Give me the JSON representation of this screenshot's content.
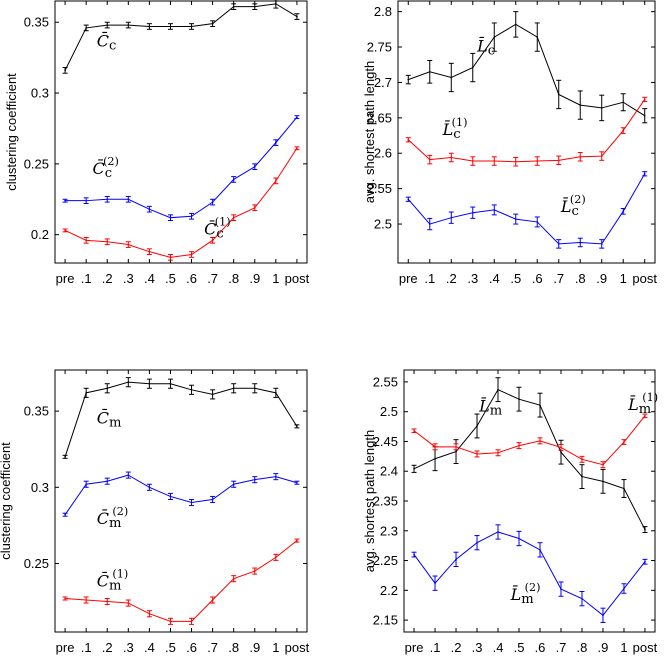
{
  "chart_data": [
    {
      "type": "line",
      "panel": "top-left",
      "ylabel": "clustering coefficient",
      "ylim": [
        0.18,
        0.365
      ],
      "yticks": [
        0.2,
        0.25,
        0.3,
        0.35
      ],
      "ytick_labels": [
        "0.2",
        "0.25",
        "0.3",
        "0.35"
      ],
      "categories": [
        "pre",
        ".1",
        ".2",
        ".3",
        ".4",
        ".5",
        ".6",
        ".7",
        ".8",
        ".9",
        "1",
        "post"
      ],
      "grid": false,
      "series": [
        {
          "color": "#000000",
          "values": [
            0.316,
            0.346,
            0.348,
            0.348,
            0.347,
            0.347,
            0.347,
            0.349,
            0.361,
            0.361,
            0.363,
            0.354
          ],
          "errors": [
            0.002,
            0.002,
            0.002,
            0.002,
            0.002,
            0.002,
            0.002,
            0.002,
            0.002,
            0.002,
            0.003,
            0.002
          ]
        },
        {
          "color": "#0000ff",
          "values": [
            0.224,
            0.224,
            0.225,
            0.225,
            0.218,
            0.212,
            0.213,
            0.223,
            0.239,
            0.248,
            0.265,
            0.283
          ],
          "errors": [
            0.001,
            0.002,
            0.002,
            0.002,
            0.002,
            0.002,
            0.002,
            0.002,
            0.002,
            0.002,
            0.002,
            0.001
          ]
        },
        {
          "color": "#ff0000",
          "values": [
            0.203,
            0.196,
            0.195,
            0.193,
            0.188,
            0.184,
            0.186,
            0.196,
            0.212,
            0.219,
            0.238,
            0.261
          ],
          "errors": [
            0.001,
            0.002,
            0.002,
            0.002,
            0.002,
            0.002,
            0.002,
            0.002,
            0.002,
            0.002,
            0.002,
            0.001
          ]
        }
      ],
      "annotations": [
        {
          "base": "C̄",
          "sub": "c",
          "sup": "",
          "anchor": [
            1.5,
            0.333
          ],
          "size": 16
        },
        {
          "base": "C̄",
          "sub": "c",
          "sup": "(2)",
          "anchor": [
            1.3,
            0.243
          ],
          "size": 16
        },
        {
          "base": "C̄",
          "sub": "c",
          "sup": "(1)",
          "anchor": [
            6.6,
            0.2
          ],
          "size": 16
        }
      ]
    },
    {
      "type": "line",
      "panel": "top-right",
      "ylabel": "avg. shortest path length",
      "ylim": [
        2.445,
        2.815
      ],
      "yticks": [
        2.5,
        2.55,
        2.6,
        2.65,
        2.7,
        2.75,
        2.8
      ],
      "ytick_labels": [
        "2.5",
        "2.55",
        "2.6",
        "2.65",
        "2.7",
        "2.75",
        "2.8"
      ],
      "categories": [
        "pre",
        ".1",
        ".2",
        ".3",
        ".4",
        ".5",
        ".6",
        ".7",
        ".8",
        ".9",
        "1",
        "post"
      ],
      "grid": false,
      "series": [
        {
          "color": "#000000",
          "values": [
            2.704,
            2.715,
            2.707,
            2.721,
            2.764,
            2.782,
            2.764,
            2.683,
            2.668,
            2.664,
            2.672,
            2.653
          ],
          "errors": [
            0.006,
            0.016,
            0.02,
            0.02,
            0.02,
            0.018,
            0.02,
            0.02,
            0.02,
            0.018,
            0.012,
            0.01
          ]
        },
        {
          "color": "#ff0000",
          "values": [
            2.619,
            2.591,
            2.594,
            2.589,
            2.589,
            2.588,
            2.589,
            2.59,
            2.595,
            2.596,
            2.632,
            2.676
          ],
          "errors": [
            0.003,
            0.006,
            0.006,
            0.006,
            0.006,
            0.006,
            0.006,
            0.006,
            0.006,
            0.006,
            0.004,
            0.003
          ]
        },
        {
          "color": "#0000ff",
          "values": [
            2.535,
            2.5,
            2.509,
            2.516,
            2.52,
            2.507,
            2.503,
            2.472,
            2.474,
            2.472,
            2.518,
            2.571
          ],
          "errors": [
            0.003,
            0.008,
            0.008,
            0.008,
            0.007,
            0.007,
            0.007,
            0.006,
            0.006,
            0.006,
            0.004,
            0.003
          ]
        }
      ],
      "annotations": [
        {
          "base": "L̄",
          "sub": "c",
          "sup": "",
          "anchor": [
            3.2,
            2.744
          ],
          "size": 16
        },
        {
          "base": "L̄",
          "sub": "c",
          "sup": "(1)",
          "anchor": [
            1.6,
            2.626
          ],
          "size": 16
        },
        {
          "base": "L̄",
          "sub": "c",
          "sup": "(2)",
          "anchor": [
            7.1,
            2.517
          ],
          "size": 16
        }
      ]
    },
    {
      "type": "line",
      "panel": "bottom-left",
      "ylabel": "clustering coefficient",
      "ylim": [
        0.205,
        0.377
      ],
      "yticks": [
        0.25,
        0.3,
        0.35
      ],
      "ytick_labels": [
        "0.25",
        "0.3",
        "0.35"
      ],
      "categories": [
        "pre",
        ".1",
        ".2",
        ".3",
        ".4",
        ".5",
        ".6",
        ".7",
        ".8",
        ".9",
        "1",
        "post"
      ],
      "grid": false,
      "series": [
        {
          "color": "#000000",
          "values": [
            0.32,
            0.362,
            0.365,
            0.369,
            0.368,
            0.368,
            0.364,
            0.361,
            0.365,
            0.365,
            0.362,
            0.34
          ],
          "errors": [
            0.001,
            0.003,
            0.003,
            0.003,
            0.003,
            0.003,
            0.003,
            0.003,
            0.003,
            0.003,
            0.003,
            0.001
          ]
        },
        {
          "color": "#0000ff",
          "values": [
            0.282,
            0.302,
            0.304,
            0.308,
            0.3,
            0.294,
            0.29,
            0.292,
            0.302,
            0.305,
            0.307,
            0.303
          ],
          "errors": [
            0.001,
            0.002,
            0.002,
            0.002,
            0.002,
            0.002,
            0.002,
            0.002,
            0.002,
            0.002,
            0.002,
            0.001
          ]
        },
        {
          "color": "#ff0000",
          "values": [
            0.227,
            0.226,
            0.225,
            0.224,
            0.217,
            0.212,
            0.212,
            0.226,
            0.24,
            0.245,
            0.254,
            0.265
          ],
          "errors": [
            0.001,
            0.002,
            0.002,
            0.002,
            0.002,
            0.002,
            0.002,
            0.002,
            0.002,
            0.002,
            0.002,
            0.001
          ]
        }
      ],
      "annotations": [
        {
          "base": "C̄",
          "sub": "m",
          "sup": "",
          "anchor": [
            1.5,
            0.342
          ],
          "size": 16
        },
        {
          "base": "C̄",
          "sub": "m",
          "sup": "(2)",
          "anchor": [
            1.5,
            0.276
          ],
          "size": 16
        },
        {
          "base": "C̄",
          "sub": "m",
          "sup": "(1)",
          "anchor": [
            1.5,
            0.235
          ],
          "size": 16
        }
      ]
    },
    {
      "type": "line",
      "panel": "bottom-right",
      "ylabel": "avg. shortest path length",
      "ylim": [
        2.13,
        2.57
      ],
      "yticks": [
        2.15,
        2.2,
        2.25,
        2.3,
        2.35,
        2.4,
        2.45,
        2.5,
        2.55
      ],
      "ytick_labels": [
        "2.15",
        "2.2",
        "2.25",
        "2.3",
        "2.35",
        "2.4",
        "2.45",
        "2.5",
        "2.55"
      ],
      "categories": [
        "pre",
        ".1",
        ".2",
        ".3",
        ".4",
        ".5",
        ".6",
        ".7",
        ".8",
        ".9",
        "1",
        "post"
      ],
      "grid": false,
      "series": [
        {
          "color": "#000000",
          "values": [
            2.404,
            2.421,
            2.433,
            2.476,
            2.537,
            2.521,
            2.511,
            2.432,
            2.391,
            2.383,
            2.371,
            2.302
          ],
          "errors": [
            0.006,
            0.02,
            0.02,
            0.02,
            0.02,
            0.02,
            0.02,
            0.02,
            0.02,
            0.02,
            0.015,
            0.005
          ]
        },
        {
          "color": "#ff0000",
          "values": [
            2.468,
            2.441,
            2.441,
            2.429,
            2.431,
            2.443,
            2.451,
            2.44,
            2.42,
            2.411,
            2.449,
            2.493
          ],
          "errors": [
            0.003,
            0.005,
            0.005,
            0.005,
            0.005,
            0.005,
            0.005,
            0.005,
            0.005,
            0.005,
            0.004,
            0.003
          ]
        },
        {
          "color": "#0000ff",
          "values": [
            2.26,
            2.212,
            2.252,
            2.28,
            2.298,
            2.287,
            2.268,
            2.202,
            2.186,
            2.158,
            2.203,
            2.248
          ],
          "errors": [
            0.004,
            0.012,
            0.012,
            0.012,
            0.012,
            0.012,
            0.012,
            0.012,
            0.012,
            0.012,
            0.008,
            0.004
          ]
        }
      ],
      "annotations": [
        {
          "base": "L̄",
          "sub": "m",
          "sup": "",
          "anchor": [
            3.1,
            2.5
          ],
          "size": 16
        },
        {
          "base": "L̄",
          "sub": "m",
          "sup": "(1)",
          "anchor": [
            10.2,
            2.503
          ],
          "size": 16
        },
        {
          "base": "L̄",
          "sub": "m",
          "sup": "(2)",
          "anchor": [
            4.6,
            2.184
          ],
          "size": 16
        }
      ]
    }
  ]
}
